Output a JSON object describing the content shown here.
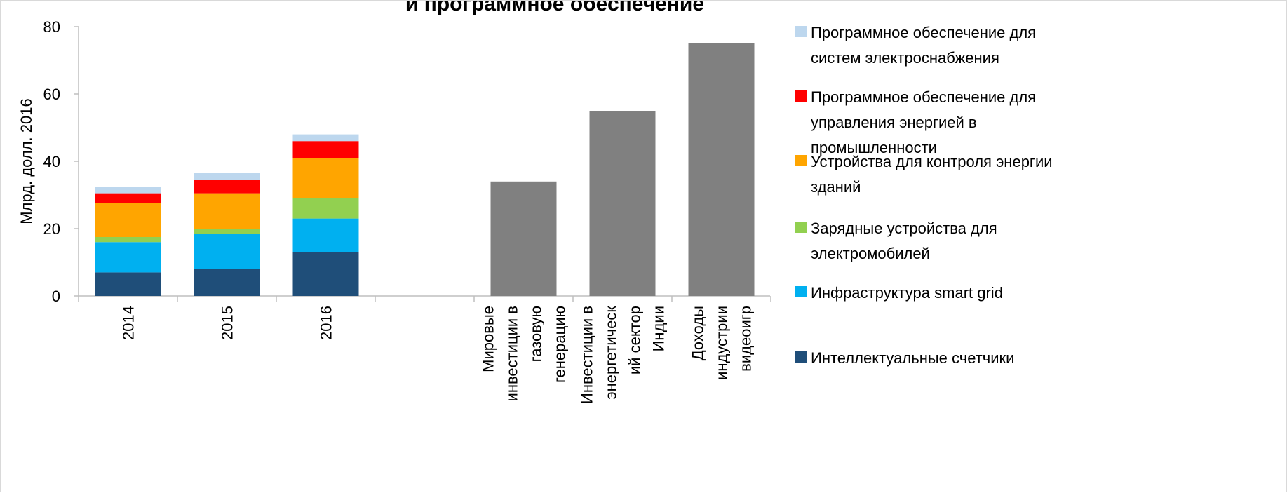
{
  "chart_data": {
    "type": "bar",
    "title": "и программное обеспечение",
    "ylabel": "Млрд. долл. 2016",
    "ylim": [
      0,
      80
    ],
    "yticks": [
      "0",
      "20",
      "40",
      "60",
      "80"
    ],
    "stacked": {
      "categories": [
        "2014",
        "2015",
        "2016"
      ],
      "series": [
        {
          "name": "Интеллектуальные счетчики",
          "color": "#1f4e79",
          "values": [
            7,
            8,
            13
          ]
        },
        {
          "name": "Инфраструктура smart grid",
          "color": "#00b0f0",
          "values": [
            9,
            10.5,
            10
          ]
        },
        {
          "name": "Зарядные устройства для электромобилей",
          "color": "#92d050",
          "values": [
            1.5,
            1.5,
            6
          ]
        },
        {
          "name": "Устройства для контроля энергии зданий",
          "color": "#ffa500",
          "values": [
            10,
            10.5,
            12
          ]
        },
        {
          "name": "Программное обеспечение для управления энергией в промышленности",
          "color": "#ff0000",
          "values": [
            3,
            4,
            5
          ]
        },
        {
          "name": "Программное обеспечение для систем электроснабжения",
          "color": "#bdd7ee",
          "values": [
            2,
            2,
            2
          ]
        }
      ]
    },
    "comparison": {
      "color": "#808080",
      "bars": [
        {
          "label": "Мировые инвестиции в газовую генерацию",
          "label_lines": [
            "Мировые",
            "инвестиции в",
            "газовую",
            "генерацию"
          ],
          "value": 34
        },
        {
          "label": "Инвестиции в энергетический сектор Индии",
          "label_lines": [
            "Инвестиции в",
            "энергетическ",
            "ий сектор",
            "Индии"
          ],
          "value": 55
        },
        {
          "label": "Доходы индустрии видеоигр",
          "label_lines": [
            "Доходы",
            "индустрии",
            "видеоигр"
          ],
          "value": 75
        }
      ]
    },
    "legend": {
      "placement": "right",
      "entries": [
        {
          "lines": [
            "Программное обеспечение для",
            "систем электроснабжения"
          ],
          "color": "#bdd7ee"
        },
        {
          "lines": [
            "Программное обеспечение для",
            "управления энергией в",
            "промышленности"
          ],
          "color": "#ff0000"
        },
        {
          "lines": [
            "Устройства для контроля энергии",
            "зданий"
          ],
          "color": "#ffa500"
        },
        {
          "lines": [
            "Зарядные устройства для",
            "электромобилей"
          ],
          "color": "#92d050"
        },
        {
          "lines": [
            "Инфраструктура smart grid"
          ],
          "color": "#00b0f0"
        },
        {
          "lines": [
            "Интеллектуальные счетчики"
          ],
          "color": "#1f4e79"
        }
      ]
    }
  }
}
